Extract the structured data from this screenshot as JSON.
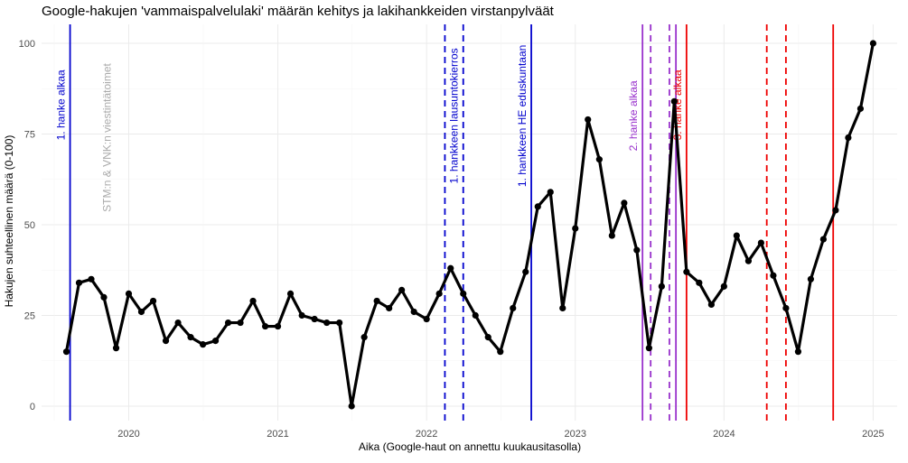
{
  "chart_data": {
    "type": "line",
    "title": "Google-hakujen 'vammaispalvelulaki' määrän kehitys ja lakihankkeiden virstanpylväät",
    "xlabel": "Aika (Google-haut on annettu kuukausitasolla)",
    "ylabel": "Hakujen suhteellinen määrä (0-100)",
    "ylim": [
      0,
      100
    ],
    "yticks": [
      0,
      25,
      50,
      75,
      100
    ],
    "xlim": [
      "2019-06-01",
      "2025-03-01"
    ],
    "xticks": [
      {
        "date": "2020-01-01",
        "label": "2020"
      },
      {
        "date": "2021-01-01",
        "label": "2021"
      },
      {
        "date": "2022-01-01",
        "label": "2022"
      },
      {
        "date": "2023-01-01",
        "label": "2023"
      },
      {
        "date": "2024-01-01",
        "label": "2024"
      },
      {
        "date": "2025-01-01",
        "label": "2025"
      }
    ],
    "grid": true,
    "legend": "none",
    "series": [
      {
        "color": "#000000",
        "x": [
          "2019-08-01",
          "2019-09-01",
          "2019-10-01",
          "2019-11-01",
          "2019-12-01",
          "2020-01-01",
          "2020-02-01",
          "2020-03-01",
          "2020-04-01",
          "2020-05-01",
          "2020-06-01",
          "2020-07-01",
          "2020-08-01",
          "2020-09-01",
          "2020-10-01",
          "2020-11-01",
          "2020-12-01",
          "2021-01-01",
          "2021-02-01",
          "2021-03-01",
          "2021-04-01",
          "2021-05-01",
          "2021-06-01",
          "2021-07-01",
          "2021-08-01",
          "2021-09-01",
          "2021-10-01",
          "2021-11-01",
          "2021-12-01",
          "2022-01-01",
          "2022-02-01",
          "2022-03-01",
          "2022-04-01",
          "2022-05-01",
          "2022-06-01",
          "2022-07-01",
          "2022-08-01",
          "2022-09-01",
          "2022-10-01",
          "2022-11-01",
          "2022-12-01",
          "2023-01-01",
          "2023-02-01",
          "2023-03-01",
          "2023-04-01",
          "2023-05-01",
          "2023-06-01",
          "2023-07-01",
          "2023-08-01",
          "2023-09-01",
          "2023-10-01",
          "2023-11-01",
          "2023-12-01",
          "2024-01-01",
          "2024-02-01",
          "2024-03-01",
          "2024-04-01",
          "2024-05-01",
          "2024-06-01",
          "2024-07-01",
          "2024-08-01",
          "2024-09-01",
          "2024-10-01",
          "2024-11-01",
          "2024-12-01",
          "2025-01-01"
        ],
        "values": [
          15,
          34,
          35,
          30,
          16,
          31,
          26,
          29,
          18,
          23,
          19,
          17,
          18,
          23,
          23,
          29,
          22,
          22,
          31,
          25,
          24,
          23,
          23,
          0,
          19,
          29,
          27,
          32,
          26,
          24,
          31,
          38,
          31,
          25,
          19,
          15,
          27,
          37,
          55,
          59,
          27,
          49,
          79,
          68,
          47,
          56,
          43,
          16,
          33,
          84,
          37,
          34,
          28,
          33,
          47,
          40,
          45,
          36,
          27,
          15,
          35,
          46,
          54,
          74,
          82,
          100
        ]
      }
    ],
    "annotations": [
      {
        "date": "2019-08-10",
        "color": "#0000cd",
        "style": "solid",
        "label": "1. hanke alkaa",
        "label_color": "#0000cd",
        "label_y": 83
      },
      {
        "date": "2019-12-01",
        "color": "",
        "style": "none",
        "label": "STM:n & VNK:n viestintätoimet",
        "label_color": "#aaaaaa",
        "label_y": 74
      },
      {
        "date": "2022-02-15",
        "color": "#0000cd",
        "style": "dashed",
        "label": "",
        "label_color": "",
        "label_y": 0
      },
      {
        "date": "2022-04-01",
        "color": "#0000cd",
        "style": "dashed",
        "label": "1. hankkeen lausuntokierros",
        "label_color": "#0000cd",
        "label_y": 80
      },
      {
        "date": "2022-09-15",
        "color": "#0000cd",
        "style": "solid",
        "label": "1. hankkeen HE eduskuntaan",
        "label_color": "#0000cd",
        "label_y": 80
      },
      {
        "date": "2023-06-15",
        "color": "#9932cc",
        "style": "solid",
        "label": "2. hanke alkaa",
        "label_color": "#9932cc",
        "label_y": 80
      },
      {
        "date": "2023-07-05",
        "color": "#9932cc",
        "style": "dashed",
        "label": "",
        "label_color": "",
        "label_y": 0
      },
      {
        "date": "2023-08-20",
        "color": "#9932cc",
        "style": "dashed",
        "label": "",
        "label_color": "",
        "label_y": 0
      },
      {
        "date": "2023-09-05",
        "color": "#9932cc",
        "style": "solid",
        "label": "",
        "label_color": "",
        "label_y": 0
      },
      {
        "date": "2023-10-01",
        "color": "#ee0000",
        "style": "solid",
        "label": "3. hanke alkaa",
        "label_color": "#ee0000",
        "label_y": 83
      },
      {
        "date": "2024-04-15",
        "color": "#ee0000",
        "style": "dashed",
        "label": "",
        "label_color": "",
        "label_y": 0
      },
      {
        "date": "2024-06-01",
        "color": "#ee0000",
        "style": "dashed",
        "label": "",
        "label_color": "",
        "label_y": 0
      },
      {
        "date": "2024-09-25",
        "color": "#ee0000",
        "style": "solid",
        "label": "",
        "label_color": "",
        "label_y": 0
      }
    ]
  }
}
